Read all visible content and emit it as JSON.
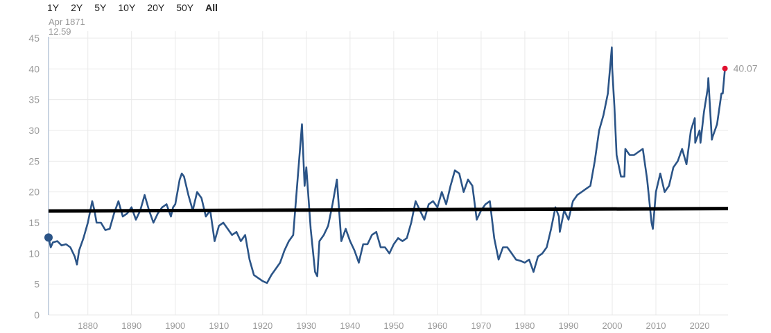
{
  "range_buttons": [
    "1Y",
    "2Y",
    "5Y",
    "10Y",
    "20Y",
    "50Y",
    "All"
  ],
  "active_range": "All",
  "tooltip": {
    "date": "Apr 1871",
    "value": "12.59"
  },
  "colors": {
    "line": "#2b5487",
    "end_marker": "#e0102f",
    "start_marker": "#2b5487",
    "hline": "#000000",
    "grid": "#e9e9e9",
    "axis_text": "#9a9a9a"
  },
  "chart_data": {
    "type": "line",
    "title": "",
    "xlabel": "",
    "ylabel": "",
    "xlim": [
      1871,
      2026.5
    ],
    "ylim": [
      0,
      45
    ],
    "yticks": [
      0,
      5,
      10,
      15,
      20,
      25,
      30,
      35,
      40,
      45
    ],
    "xticks": [
      1880,
      1890,
      1900,
      1910,
      1920,
      1930,
      1940,
      1950,
      1960,
      1970,
      1980,
      1990,
      2000,
      2010,
      2020
    ],
    "grid": "vertical and horizontal light gridlines",
    "start_point": {
      "x": 1871.0,
      "y": 12.59
    },
    "end_point": {
      "x": 2025.8,
      "y": 40.07,
      "label": "40.07"
    },
    "reference_line": {
      "x": [
        1871,
        2026.5
      ],
      "y": [
        16.9,
        17.3
      ]
    },
    "series": [
      {
        "x": [
          1871.0,
          1871.5,
          1872,
          1873,
          1874,
          1875,
          1876,
          1877,
          1877.5,
          1878,
          1879,
          1880,
          1881,
          1881.5,
          1882,
          1883,
          1884,
          1885,
          1886,
          1887,
          1888,
          1889,
          1890,
          1891,
          1892,
          1893,
          1894,
          1895,
          1896,
          1897,
          1898,
          1899,
          1899.5,
          1900,
          1901,
          1901.5,
          1902,
          1903,
          1904,
          1905,
          1906,
          1907,
          1908,
          1909,
          1910,
          1911,
          1912,
          1913,
          1914,
          1915,
          1916,
          1917,
          1918,
          1919,
          1920,
          1921,
          1922,
          1923,
          1924,
          1925,
          1926,
          1927,
          1928,
          1929,
          1929.6,
          1930,
          1931,
          1932,
          1932.5,
          1933,
          1934,
          1935,
          1936,
          1937,
          1938,
          1939,
          1940,
          1941,
          1942,
          1943,
          1944,
          1945,
          1946,
          1947,
          1948,
          1949,
          1950,
          1951,
          1952,
          1953,
          1954,
          1955,
          1956,
          1957,
          1958,
          1959,
          1960,
          1961,
          1962,
          1963,
          1964,
          1965,
          1966,
          1967,
          1968,
          1969,
          1970,
          1971,
          1972,
          1973,
          1974,
          1975,
          1976,
          1977,
          1978,
          1979,
          1980,
          1981,
          1982,
          1983,
          1984,
          1985,
          1986,
          1987,
          1987.8,
          1988,
          1989,
          1990,
          1991,
          1992,
          1993,
          1994,
          1995,
          1996,
          1997,
          1998,
          1999,
          1999.9,
          2000,
          2000.5,
          2001,
          2002,
          2002.8,
          2003,
          2004,
          2005,
          2006,
          2007,
          2008,
          2009,
          2009.3,
          2010,
          2011,
          2012,
          2013,
          2014,
          2015,
          2016,
          2017,
          2018,
          2018.9,
          2019,
          2020,
          2020.2,
          2021,
          2021.9,
          2022,
          2022.8,
          2023,
          2024,
          2025,
          2025.3,
          2025.8
        ],
        "y": [
          12.59,
          11.0,
          11.8,
          12.0,
          11.3,
          11.5,
          11.0,
          9.5,
          8.2,
          10.5,
          12.5,
          15.0,
          18.5,
          17.0,
          15.0,
          15.0,
          13.8,
          14.0,
          16.5,
          18.5,
          16.0,
          16.5,
          17.5,
          15.5,
          17.0,
          19.5,
          17.0,
          15.0,
          16.5,
          17.5,
          18.0,
          16.0,
          17.5,
          18.0,
          22.0,
          23.0,
          22.5,
          19.5,
          17.0,
          20.0,
          19.0,
          16.0,
          17.0,
          12.0,
          14.5,
          15.0,
          14.0,
          13.0,
          13.5,
          12.0,
          13.0,
          9.0,
          6.5,
          6.0,
          5.5,
          5.2,
          6.5,
          7.5,
          8.5,
          10.5,
          12.0,
          13.0,
          22.0,
          31.0,
          21.0,
          24.0,
          14.0,
          7.0,
          6.3,
          12.0,
          13.0,
          14.5,
          18.0,
          22.0,
          12.0,
          14.0,
          12.0,
          10.5,
          8.5,
          11.5,
          11.5,
          13.0,
          13.5,
          11.0,
          11.0,
          10.0,
          11.5,
          12.5,
          12.0,
          12.5,
          15.0,
          18.5,
          17.0,
          15.5,
          18.0,
          18.5,
          17.5,
          20.0,
          18.0,
          21.0,
          23.5,
          23.0,
          20.0,
          22.0,
          21.0,
          15.5,
          17.0,
          18.0,
          18.5,
          12.5,
          9.0,
          11.0,
          11.0,
          10.0,
          9.0,
          8.8,
          8.5,
          9.0,
          7.0,
          9.5,
          10.0,
          11.0,
          14.0,
          17.5,
          16.0,
          13.5,
          17.0,
          15.5,
          18.5,
          19.5,
          20.0,
          20.5,
          21.0,
          25.0,
          30.0,
          32.5,
          36.0,
          43.5,
          40.0,
          34.0,
          26.0,
          22.5,
          22.5,
          27.0,
          26.0,
          26.0,
          26.5,
          27.0,
          22.0,
          15.0,
          14.0,
          20.0,
          23.0,
          20.0,
          21.0,
          24.0,
          25.0,
          27.0,
          24.5,
          30.0,
          32.0,
          28.0,
          30.0,
          28.0,
          33.0,
          37.0,
          38.5,
          28.5,
          29.0,
          31.0,
          36.0,
          36.0,
          40.07
        ]
      }
    ]
  }
}
